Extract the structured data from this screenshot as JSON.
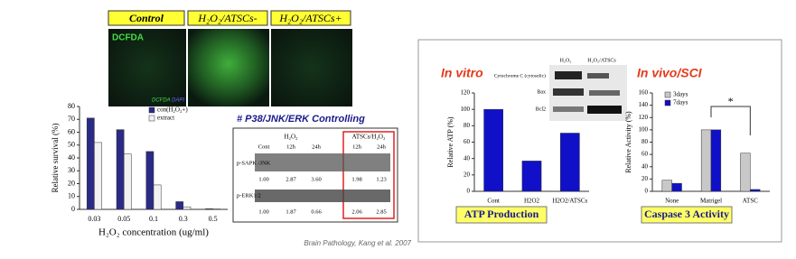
{
  "chart_data": [
    {
      "type": "bar",
      "y_label": "Relative survival (%)",
      "x_label": "H₂O₂ concentration (ug/ml)",
      "categories": [
        "0.03",
        "0.05",
        "0.1",
        "0.3",
        "0.5"
      ],
      "series": [
        {
          "name": "con(H₂O₂+)",
          "color": "#2b2b86",
          "values": [
            71,
            62,
            45,
            6,
            0.5
          ]
        },
        {
          "name": "extract",
          "color": "#f2f2f2",
          "values": [
            52,
            43,
            19,
            2,
            0.3
          ]
        }
      ],
      "ylim": [
        0,
        80
      ],
      "yticks": [
        0,
        10,
        20,
        30,
        40,
        50,
        60,
        70,
        80
      ]
    },
    {
      "type": "bar",
      "title": "In vitro",
      "y_label": "Relative ATP (%)",
      "categories": [
        "Cont",
        "H2O2",
        "H2O2/ATSCs"
      ],
      "series": [
        {
          "color": "#1010c8",
          "values": [
            100,
            37,
            71
          ]
        }
      ],
      "ylim": [
        0,
        120
      ],
      "yticks": [
        0,
        20,
        40,
        60,
        80,
        100,
        120
      ],
      "caption": "ATP Production"
    },
    {
      "type": "bar",
      "title": "In vivo/SCI",
      "y_label": "Relative Activity (%)",
      "categories": [
        "None",
        "Matrigel",
        "ATSC"
      ],
      "series": [
        {
          "name": "3days",
          "color": "#c8c8c8",
          "values": [
            18,
            100,
            62
          ]
        },
        {
          "name": "7days",
          "color": "#1010c8",
          "values": [
            13,
            100,
            3
          ]
        }
      ],
      "ylim": [
        0,
        160
      ],
      "yticks": [
        0,
        20,
        40,
        60,
        80,
        100,
        120,
        140,
        160
      ],
      "annotation": "*",
      "caption": "Caspase 3 Activity"
    }
  ],
  "imaging": {
    "panels": [
      "Control",
      "H₂O₂/ATSCs-",
      "H₂O₂/ATSCs+"
    ],
    "stain": "DCFDA",
    "legend": [
      "DCFDA",
      "DAPI"
    ]
  },
  "blot": {
    "title": "# P38/JNK/ERK Controlling",
    "groups": [
      "H₂O₂",
      "ATSCs/H₂O₂"
    ],
    "lanes": [
      "Cont",
      "12h",
      "24h",
      "12h",
      "24h"
    ],
    "rows": [
      {
        "label": "p-SAPK /JNK",
        "values": [
          "1.00",
          "2.87",
          "3.60",
          "1.98",
          "1.23"
        ]
      },
      {
        "label": "p-ERK1/2",
        "values": [
          "1.00",
          "1.87",
          "0.66",
          "2.06",
          "2.85"
        ]
      }
    ]
  },
  "cyto_blot": {
    "lanes": [
      "H₂O₂",
      "H₂O₂/ATSCs"
    ],
    "rows": [
      "Cytochrome C (cytosolic)",
      "Bax",
      "Bcl2"
    ]
  },
  "citation": "Brain Pathology, Kang et al. 2007"
}
